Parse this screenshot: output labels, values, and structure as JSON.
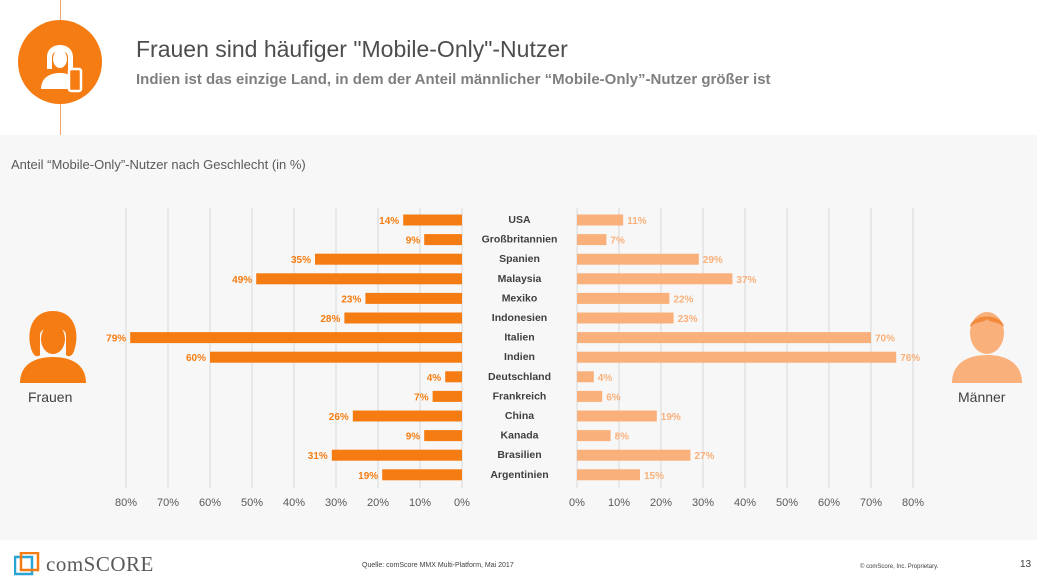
{
  "header": {
    "title": "Frauen sind häufiger \"Mobile-Only\"-Nutzer",
    "subtitle": "Indien ist das einzige Land, in dem der Anteil männlicher “Mobile-Only”-Nutzer größer ist",
    "icon": "woman-with-phone-icon"
  },
  "colors": {
    "women": "#f57c12",
    "men": "#f9b07a",
    "grid": "#d9d9d9",
    "label": "#595959"
  },
  "chart_data": {
    "type": "bar",
    "subtitle": "Anteil “Mobile-Only”-Nutzer nach Geschlecht (in %)",
    "categories": [
      "USA",
      "Großbritannien",
      "Spanien",
      "Malaysia",
      "Mexiko",
      "Indonesien",
      "Italien",
      "Indien",
      "Deutschland",
      "Frankreich",
      "China",
      "Kanada",
      "Brasilien",
      "Argentinien"
    ],
    "series": [
      {
        "name": "Frauen",
        "values": [
          14,
          9,
          35,
          49,
          23,
          28,
          79,
          60,
          4,
          7,
          26,
          9,
          31,
          19
        ]
      },
      {
        "name": "Männer",
        "values": [
          11,
          7,
          29,
          37,
          22,
          23,
          70,
          76,
          4,
          6,
          19,
          8,
          27,
          15
        ]
      }
    ],
    "xlim": [
      0,
      80
    ],
    "ticks": [
      80,
      70,
      60,
      50,
      40,
      30,
      20,
      10,
      0
    ],
    "tick_suffix": "%",
    "value_suffix": "%",
    "grid": true
  },
  "people": {
    "women_label": "Frauen",
    "men_label": "Männer"
  },
  "footer": {
    "logo_text": "comSCORE",
    "source": "Quelle: comScore MMX Multi-Platform, Mai 2017",
    "copyright": "© comScore, Inc. Proprietary.",
    "page_number": "13"
  }
}
